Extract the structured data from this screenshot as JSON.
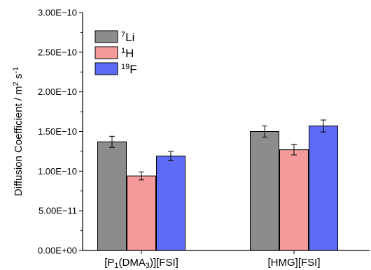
{
  "chart_data": {
    "type": "bar",
    "ylabel": "Diffusion Coefficient / m² s⁻¹",
    "ylabel_parts": {
      "main": "Diffusion Coefficient / m",
      "sup1": "2",
      "mid": " s",
      "sup2": "-1"
    },
    "ylim": [
      0,
      3e-10
    ],
    "yticks": [
      {
        "value": 0,
        "label": "0.00E+00"
      },
      {
        "value": 5e-11,
        "label": "5.00E−11"
      },
      {
        "value": 1e-10,
        "label": "1.00E−10"
      },
      {
        "value": 1.5e-10,
        "label": "1.50E−10"
      },
      {
        "value": 2e-10,
        "label": "2.00E−10"
      },
      {
        "value": 2.5e-10,
        "label": "2.50E−10"
      },
      {
        "value": 3e-10,
        "label": "3.00E−10"
      }
    ],
    "categories": [
      "[P1(DMA3)][FSI]",
      "[HMG][FSI]"
    ],
    "category_label_parts": [
      [
        {
          "t": "[P",
          "s": ""
        },
        {
          "t": "1",
          "s": "sub"
        },
        {
          "t": "(DMA",
          "s": ""
        },
        {
          "t": "3",
          "s": "sub"
        },
        {
          "t": ")][FSI]",
          "s": ""
        }
      ],
      [
        {
          "t": "[HMG][FSI]",
          "s": ""
        }
      ]
    ],
    "series": [
      {
        "name": "7Li",
        "sup": "7",
        "base": "Li",
        "color": "#8c8c8c",
        "values": [
          1.37e-10,
          1.5e-10
        ],
        "errors": [
          7e-12,
          7e-12
        ]
      },
      {
        "name": "1H",
        "sup": "1",
        "base": "H",
        "color": "#f59a9a",
        "values": [
          9.4e-11,
          1.27e-10
        ],
        "errors": [
          5e-12,
          6.5e-12
        ]
      },
      {
        "name": "19F",
        "sup": "19",
        "base": "F",
        "color": "#5e6cf5",
        "values": [
          1.19e-10,
          1.57e-10
        ],
        "errors": [
          6e-12,
          7.5e-12
        ]
      }
    ],
    "legend_position": "top-left",
    "grid": false
  }
}
